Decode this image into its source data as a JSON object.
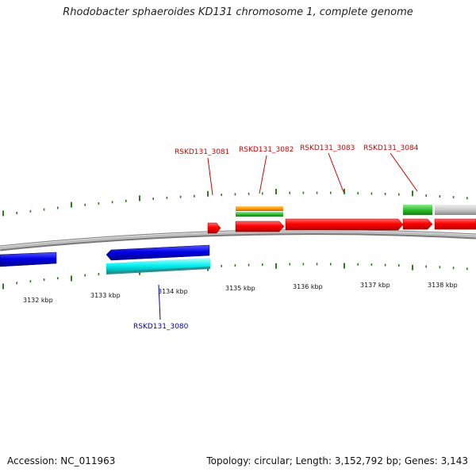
{
  "title": "Rhodobacter sphaeroides KD131 chromosome 1, complete genome",
  "footer": {
    "accession": "Accession: NC_011963",
    "topology": "Topology: circular; Length: 3,152,792 bp; Genes: 3,143"
  },
  "colors": {
    "red": "#ff0000",
    "blue": "#0000e6",
    "cyan": "#00ffff",
    "green": "#33cc33",
    "orange": "#ff9900",
    "gray": "#c8c8c8",
    "tick": "#2e7d1f",
    "label_red": "#cc0000",
    "label_blue": "#0000aa"
  },
  "scale_labels": [
    "3132 kbp",
    "3133 kbp",
    "3134 kbp",
    "3135 kbp",
    "3136 kbp",
    "3137 kbp",
    "3138 kbp"
  ],
  "gene_labels": [
    {
      "text": "RSKD131_3081",
      "color": "label_red"
    },
    {
      "text": "RSKD131_3082",
      "color": "label_red"
    },
    {
      "text": "RSKD131_3083",
      "color": "label_red"
    },
    {
      "text": "RSKD131_3084",
      "color": "label_red"
    },
    {
      "text": "RSKD131_3080",
      "color": "label_blue"
    }
  ]
}
